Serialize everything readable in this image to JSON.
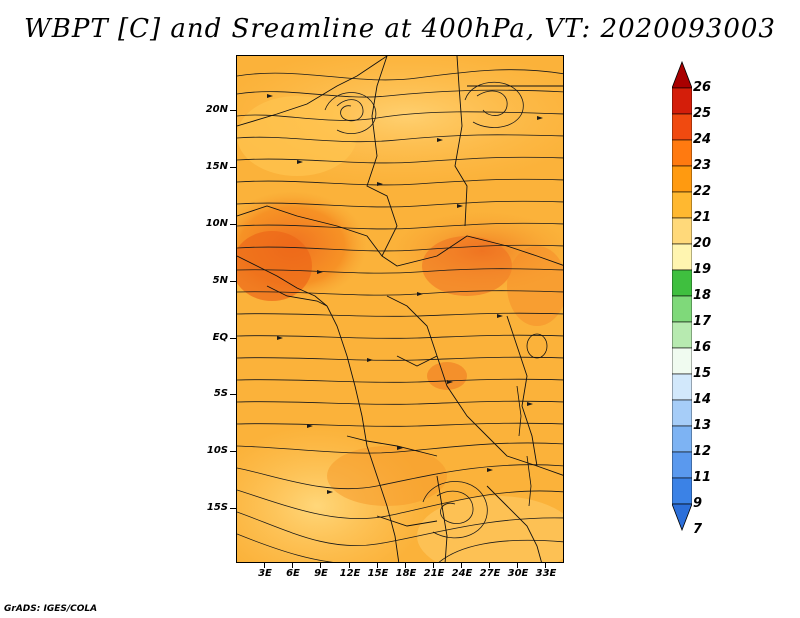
{
  "title": "WBPT [C] and Sreamline at 400hPa, VT: 2020093003",
  "credit": "GrADS: IGES/COLA",
  "map": {
    "variable": "Wet-bulb potential temperature",
    "units": "C",
    "level": "400hPa",
    "lat_labels": [
      "20N",
      "15N",
      "10N",
      "5N",
      "EQ",
      "5S",
      "10S",
      "15S"
    ],
    "lon_labels": [
      "3E",
      "6E",
      "9E",
      "12E",
      "15E",
      "18E",
      "21E",
      "24E",
      "27E",
      "30E",
      "33E"
    ]
  },
  "colorbar": {
    "levels": [
      "7",
      "9",
      "11",
      "12",
      "13",
      "14",
      "15",
      "16",
      "17",
      "18",
      "19",
      "20",
      "21",
      "22",
      "23",
      "24",
      "25",
      "26"
    ],
    "colors": [
      "#2c6fd9",
      "#3b82e6",
      "#5a99ee",
      "#7db3f3",
      "#a6cdf8",
      "#d2e8fb",
      "#f0fbf0",
      "#b7eab0",
      "#7fd97a",
      "#3fbf3f",
      "#fff5b0",
      "#ffd97a",
      "#ffb830",
      "#ff9a10",
      "#ff7a10",
      "#f04a10",
      "#d41e0a",
      "#a80000"
    ]
  }
}
